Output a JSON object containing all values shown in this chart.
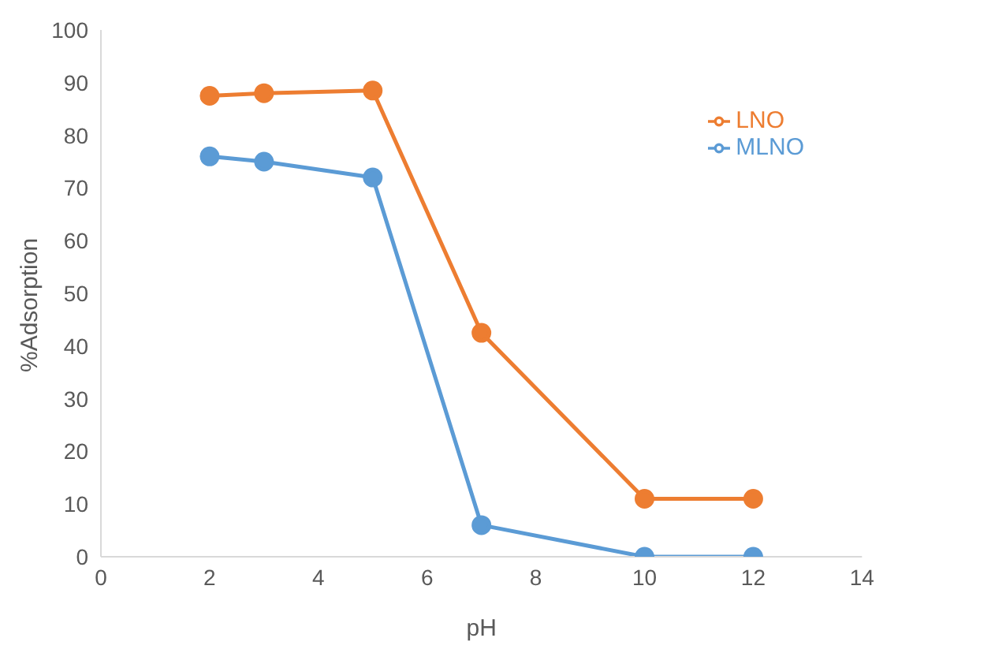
{
  "chart_data": {
    "type": "line",
    "xlabel": "pH",
    "ylabel": "%Adsorption",
    "x": [
      2,
      3,
      5,
      7,
      10,
      12
    ],
    "series": [
      {
        "name": "LNO",
        "color": "#ed7d31",
        "values": [
          87.5,
          88,
          88.5,
          42.5,
          11,
          11
        ]
      },
      {
        "name": "MLNO",
        "color": "#5b9bd5",
        "values": [
          76,
          75,
          72,
          6,
          0,
          0
        ]
      }
    ],
    "xlim": [
      0,
      14
    ],
    "xticks": [
      0,
      2,
      4,
      6,
      8,
      10,
      12,
      14
    ],
    "ylim": [
      0,
      100
    ],
    "yticks": [
      0,
      10,
      20,
      30,
      40,
      50,
      60,
      70,
      80,
      90,
      100
    ],
    "legend": "top right",
    "marker": "circle",
    "line_style": "solid"
  }
}
